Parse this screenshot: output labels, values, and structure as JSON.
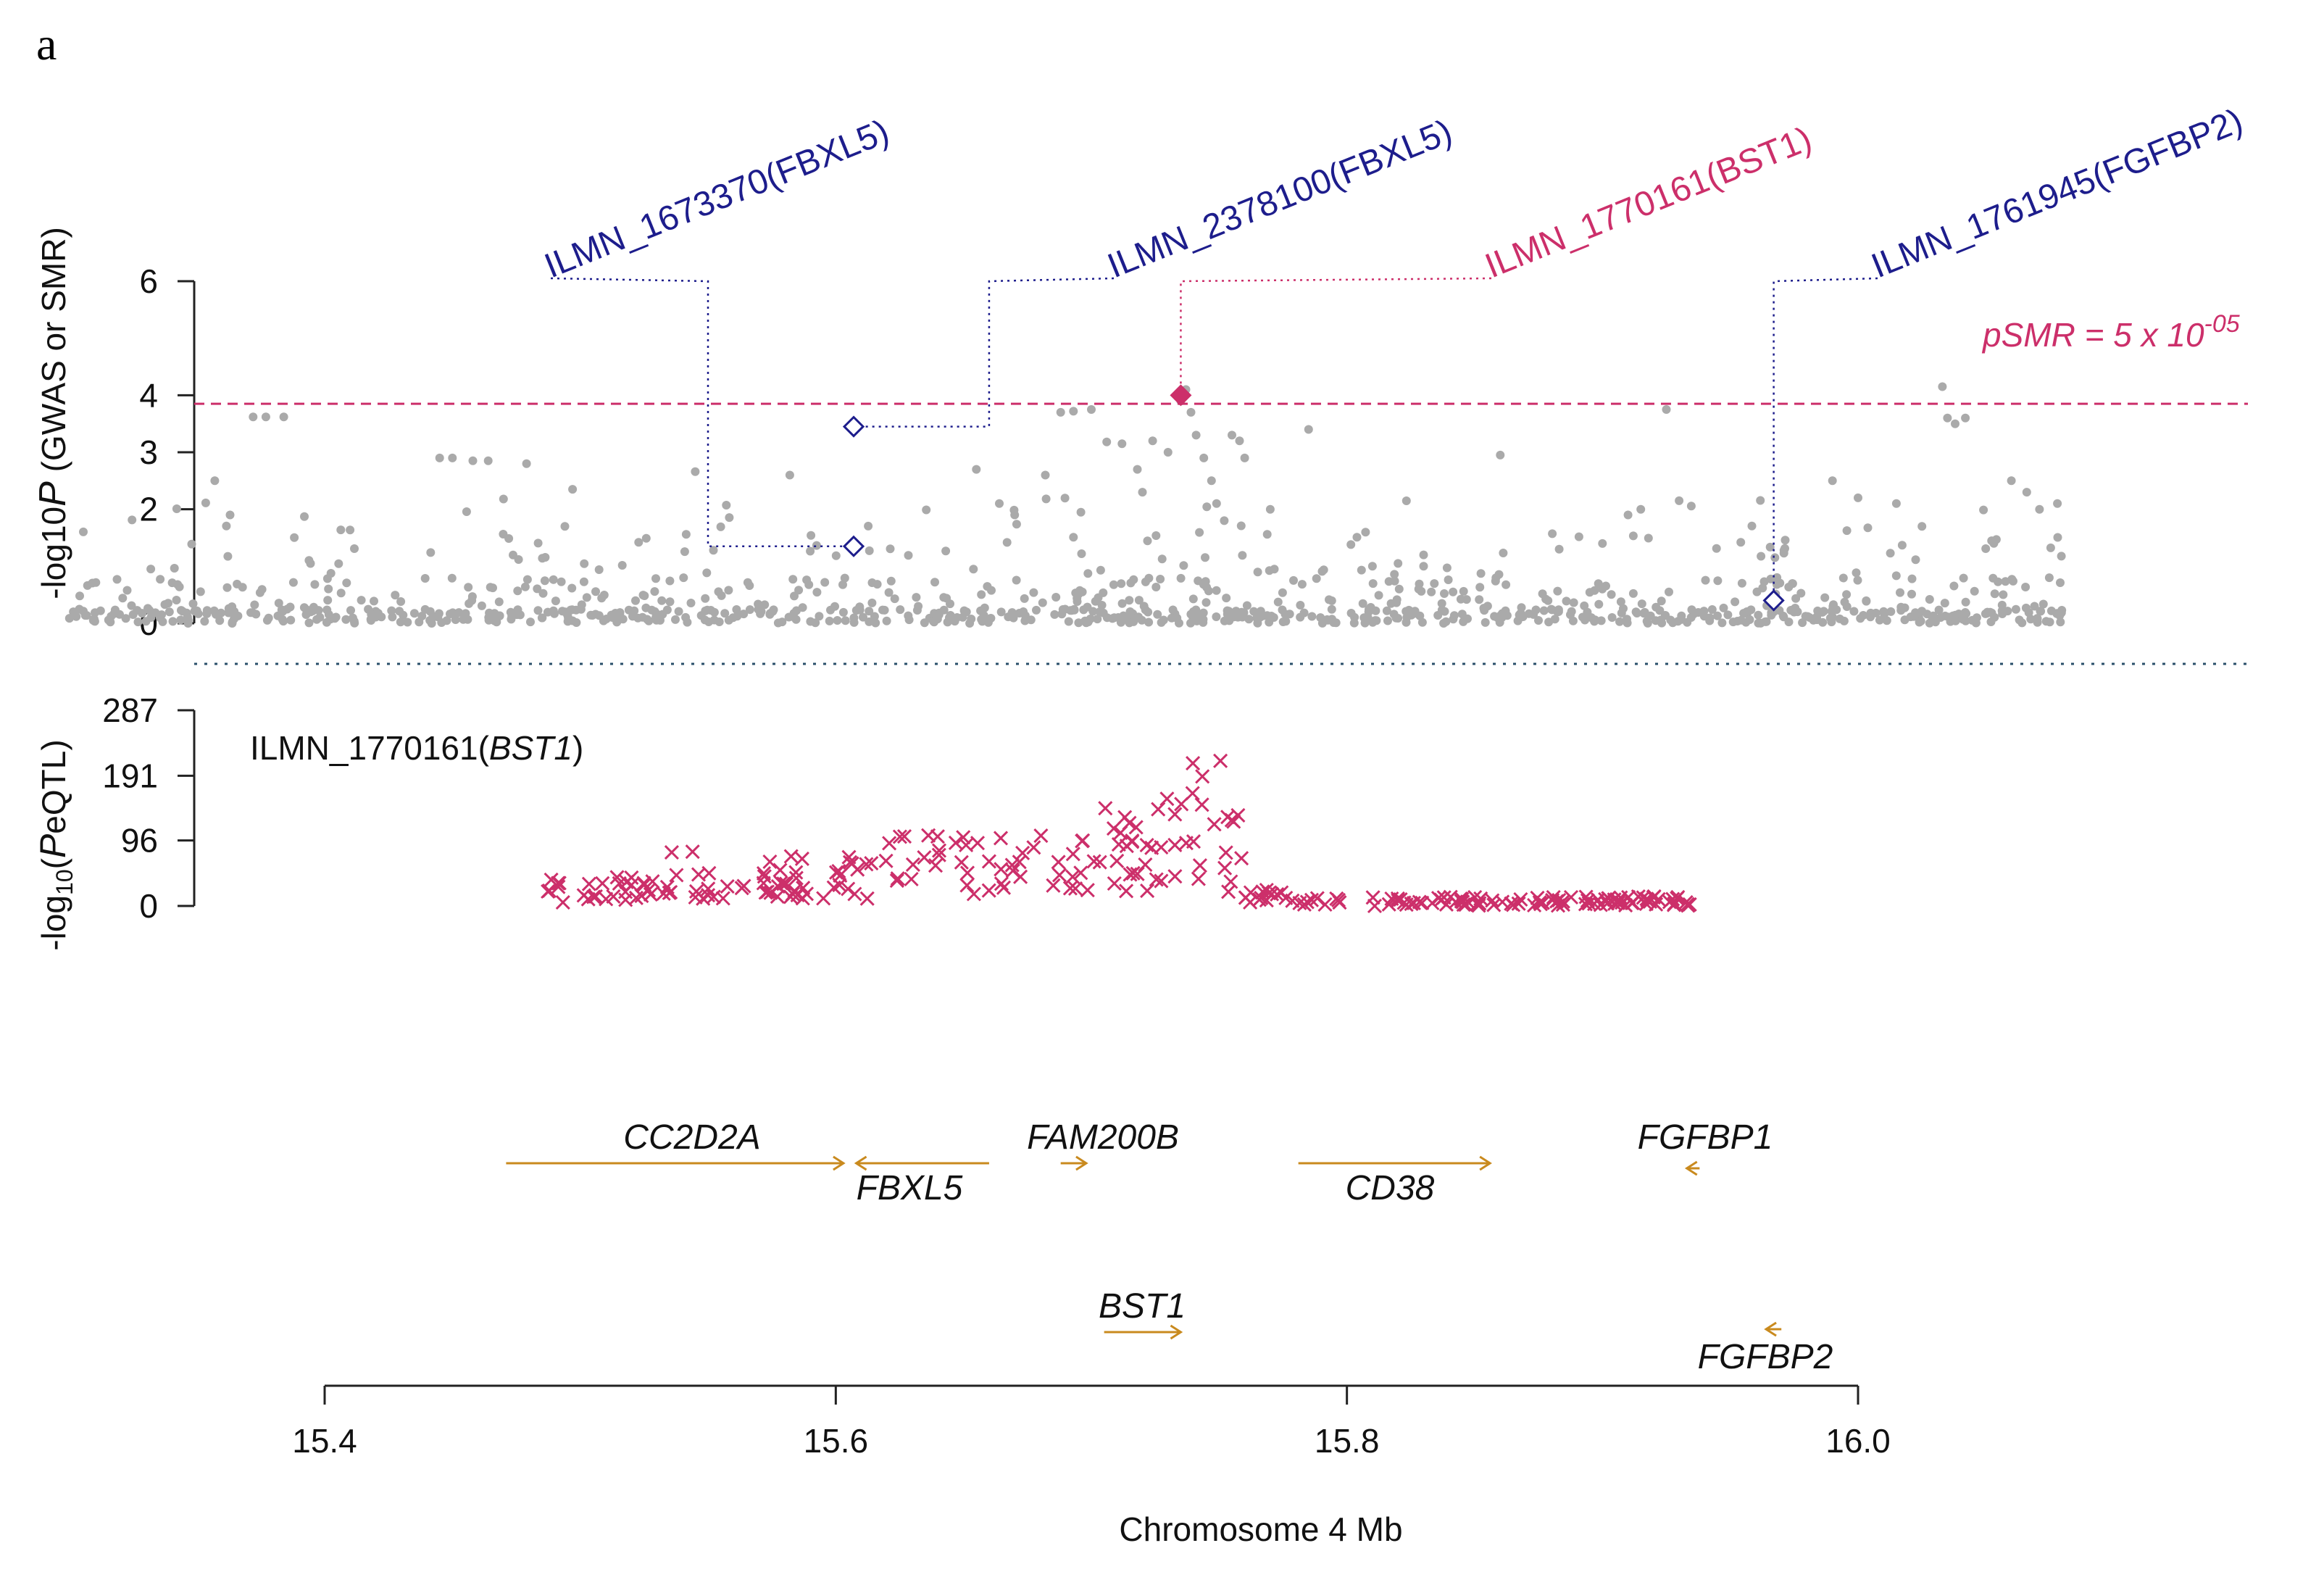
{
  "panel_label": "a",
  "colors": {
    "gwas_point": "#aaaaaa",
    "eqtl_mark": "#cc2f6a",
    "probe_blue": "#1d1d8c",
    "probe_red": "#cc2f6a",
    "gene_arrow": "#c98a1e",
    "axis": "#222222",
    "threshold": "#cc2f6a",
    "baseline": "#2a4f6a"
  },
  "chart_data": {
    "type": "scatter",
    "xlabel": "Chromosome 4 Mb",
    "xlim": [
      15.4,
      16.0
    ],
    "xticks": [
      "15.4",
      "15.6",
      "15.8",
      "16.0"
    ],
    "xtick_values": [
      15.4,
      15.6,
      15.8,
      16.0
    ],
    "top_panel": {
      "ylabel_prefix": "-log10",
      "ylabel_italic": "P",
      "ylabel_suffix": " (GWAS or SMR)",
      "ylim": [
        0,
        6
      ],
      "yticks": [
        "0",
        "2",
        "3",
        "4",
        "6"
      ],
      "ytick_values": [
        0,
        2,
        3,
        4,
        6
      ],
      "threshold": {
        "label_main": "pSMR = 5 x 10",
        "label_exp": "-05",
        "value": 3.85
      },
      "gwas_background": {
        "seed": 77,
        "count": 1000,
        "x_start": 15.3,
        "x_end": 16.08,
        "note": "dense background of GWAS SNPs, mostly -log10P < 1"
      },
      "gwas_highlight_points": [
        [
          15.357,
          2.5
        ],
        [
          15.363,
          1.9
        ],
        [
          15.372,
          3.62
        ],
        [
          15.377,
          3.62
        ],
        [
          15.384,
          3.62
        ],
        [
          15.445,
          2.9
        ],
        [
          15.45,
          2.9
        ],
        [
          15.458,
          2.85
        ],
        [
          15.464,
          2.85
        ],
        [
          15.479,
          2.8
        ],
        [
          15.494,
          1.7
        ],
        [
          15.497,
          2.35
        ],
        [
          15.545,
          2.66
        ],
        [
          15.582,
          2.6
        ],
        [
          15.655,
          2.7
        ],
        [
          15.664,
          2.1
        ],
        [
          15.67,
          1.9
        ],
        [
          15.682,
          2.6
        ],
        [
          15.688,
          3.7
        ],
        [
          15.693,
          3.72
        ],
        [
          15.7,
          3.75
        ],
        [
          15.706,
          3.18
        ],
        [
          15.712,
          3.15
        ],
        [
          15.718,
          2.7
        ],
        [
          15.72,
          2.3
        ],
        [
          15.724,
          3.2
        ],
        [
          15.73,
          3.0
        ],
        [
          15.735,
          3.9
        ],
        [
          15.737,
          4.1
        ],
        [
          15.739,
          3.7
        ],
        [
          15.741,
          3.3
        ],
        [
          15.744,
          2.9
        ],
        [
          15.747,
          2.5
        ],
        [
          15.749,
          2.1
        ],
        [
          15.752,
          1.8
        ],
        [
          15.755,
          3.3
        ],
        [
          15.758,
          3.2
        ],
        [
          15.76,
          2.9
        ],
        [
          15.77,
          2.0
        ],
        [
          15.785,
          3.4
        ],
        [
          15.83,
          1.2
        ],
        [
          15.83,
          1.0
        ],
        [
          15.86,
          2.95
        ],
        [
          15.9,
          1.4
        ],
        [
          15.91,
          1.9
        ],
        [
          15.915,
          2.0
        ],
        [
          15.925,
          3.75
        ],
        [
          15.93,
          2.15
        ],
        [
          15.99,
          2.5
        ],
        [
          16.0,
          2.2
        ],
        [
          16.015,
          2.1
        ],
        [
          16.025,
          1.7
        ],
        [
          16.033,
          4.15
        ],
        [
          16.035,
          3.6
        ],
        [
          16.038,
          3.5
        ],
        [
          16.042,
          3.6
        ],
        [
          16.06,
          2.5
        ],
        [
          16.066,
          2.3
        ],
        [
          16.071,
          2.0
        ],
        [
          16.078,
          2.1
        ],
        [
          15.81,
          1.0
        ],
        [
          15.82,
          1.05
        ]
      ],
      "smr_probes": [
        {
          "probe": "ILMN_1673370",
          "gene": "FBXL5",
          "x": 15.607,
          "y": 1.35,
          "significant": false,
          "kink_x": 15.55,
          "kink_y": 6.0
        },
        {
          "probe": "ILMN_2378100",
          "gene": "FBXL5",
          "x": 15.607,
          "y": 3.45,
          "significant": false,
          "kink_x": 15.66,
          "kink_y": 6.0
        },
        {
          "probe": "ILMN_1770161",
          "gene": "BST1",
          "x": 15.735,
          "y": 4.0,
          "significant": true,
          "kink_x": 15.735,
          "kink_y": 6.0
        },
        {
          "probe": "ILMN_1761945",
          "gene": "FGFBP2",
          "x": 15.967,
          "y": 0.4,
          "significant": false,
          "kink_x": 15.967,
          "kink_y": 6.0
        }
      ],
      "probe_labels": [
        {
          "text": "ILMN_1673370(FBXL5)",
          "color": "blue"
        },
        {
          "text": "ILMN_2378100(FBXL5)",
          "color": "blue"
        },
        {
          "text": "ILMN_1770161(BST1)",
          "color": "red"
        },
        {
          "text": "ILMN_1761945(FGFBP2)",
          "color": "blue"
        }
      ]
    },
    "eqtl_panel": {
      "title_plain": "ILMN_1770161(",
      "title_italic": "BST1",
      "title_close": ")",
      "ylabel_prefix": "-log",
      "ylabel_sub": "10",
      "ylabel_mid": "(",
      "ylabel_italic": "P",
      "ylabel_suffix": "eQTL)",
      "ylim": [
        0,
        287
      ],
      "yticks": [
        "0",
        "96",
        "191",
        "287"
      ],
      "ytick_values": [
        0,
        96,
        191,
        287
      ],
      "seed": 31,
      "x_start": 15.483,
      "x_end": 15.935
    },
    "genes": [
      {
        "name": "CC2D2A",
        "start": 15.471,
        "end": 15.603,
        "strand": "+"
      },
      {
        "name": "FBXL5",
        "start": 15.608,
        "end": 15.66,
        "strand": "-"
      },
      {
        "name": "FAM200B",
        "start": 15.688,
        "end": 15.698,
        "strand": "+"
      },
      {
        "name": "CD38",
        "start": 15.781,
        "end": 15.856,
        "strand": "+"
      },
      {
        "name": "FGFBP1",
        "start": 15.933,
        "end": 15.938,
        "strand": "-"
      },
      {
        "name": "BST1",
        "start": 15.705,
        "end": 15.735,
        "strand": "+"
      },
      {
        "name": "FGFBP2",
        "start": 15.964,
        "end": 15.97,
        "strand": "-"
      }
    ]
  }
}
